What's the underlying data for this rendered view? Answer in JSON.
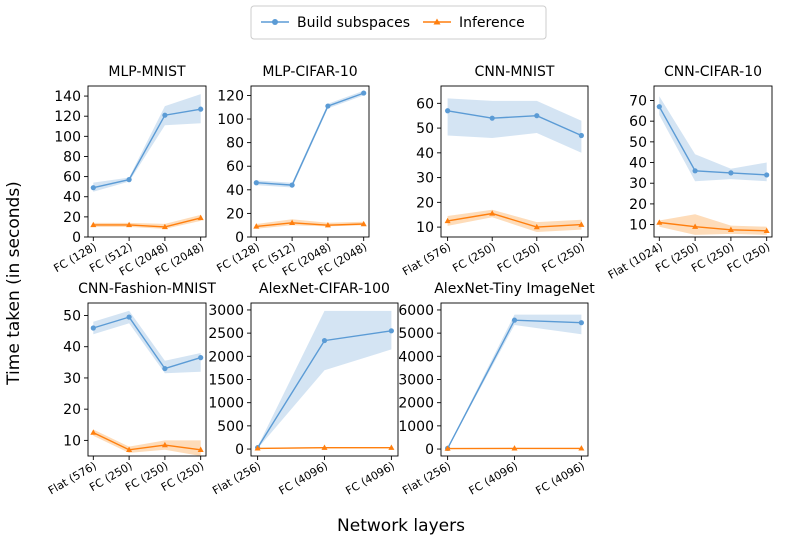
{
  "legend": {
    "entries": [
      {
        "label": "Build subspaces",
        "color": "#5b9bd5",
        "marker": "circle"
      },
      {
        "label": "Inference",
        "color": "#ff7f0e",
        "marker": "triangle"
      }
    ]
  },
  "ylabel": "Time taken (in seconds)",
  "xlabel": "Network layers",
  "colors": {
    "build": "#5b9bd5",
    "build_band": "#c6dbef",
    "inference": "#ff7f0e",
    "inference_band": "#fdd0a2"
  },
  "chart_data": [
    {
      "type": "line",
      "title": "MLP-MNIST",
      "categories": [
        "FC (128)",
        "FC (512)",
        "FC (2048)",
        "FC (2048)"
      ],
      "ylim": [
        0,
        150
      ],
      "yticks": [
        0,
        20,
        40,
        60,
        80,
        100,
        120,
        140
      ],
      "series": [
        {
          "name": "Build subspaces",
          "values": [
            49,
            57,
            121,
            127
          ],
          "lower": [
            45,
            55,
            111,
            113
          ],
          "upper": [
            54,
            59,
            130,
            142
          ]
        },
        {
          "name": "Inference",
          "values": [
            12,
            12,
            10,
            19
          ],
          "lower": [
            10,
            10,
            8,
            16
          ],
          "upper": [
            14,
            14,
            13,
            22
          ]
        }
      ]
    },
    {
      "type": "line",
      "title": "MLP-CIFAR-10",
      "categories": [
        "FC (128)",
        "FC (512)",
        "FC (2048)",
        "FC (2048)"
      ],
      "ylim": [
        0,
        128
      ],
      "yticks": [
        0,
        20,
        40,
        60,
        80,
        100,
        120
      ],
      "series": [
        {
          "name": "Build subspaces",
          "values": [
            46,
            44,
            111,
            122
          ],
          "lower": [
            44,
            42,
            109,
            120
          ],
          "upper": [
            48,
            46,
            113,
            124
          ]
        },
        {
          "name": "Inference",
          "values": [
            9,
            12,
            10,
            11
          ],
          "lower": [
            7,
            10,
            9,
            10
          ],
          "upper": [
            11,
            15,
            12,
            13
          ]
        }
      ]
    },
    {
      "type": "line",
      "title": "CNN-MNIST",
      "categories": [
        "Flat (576)",
        "FC (250)",
        "FC (250)",
        "FC (250)"
      ],
      "ylim": [
        6,
        67
      ],
      "yticks": [
        10,
        20,
        30,
        40,
        50,
        60
      ],
      "series": [
        {
          "name": "Build subspaces",
          "values": [
            57,
            54,
            55,
            47
          ],
          "lower": [
            47,
            46,
            48,
            40
          ],
          "upper": [
            62,
            61,
            61,
            53
          ]
        },
        {
          "name": "Inference",
          "values": [
            12.5,
            15.5,
            10,
            11
          ],
          "lower": [
            10.5,
            14,
            8,
            9
          ],
          "upper": [
            14.5,
            17,
            12,
            13
          ]
        }
      ]
    },
    {
      "type": "line",
      "title": "CNN-CIFAR-10",
      "categories": [
        "Flat (1024)",
        "FC (250)",
        "FC (250)",
        "FC (250)"
      ],
      "ylim": [
        4,
        77
      ],
      "yticks": [
        10,
        20,
        30,
        40,
        50,
        60,
        70
      ],
      "series": [
        {
          "name": "Build subspaces",
          "values": [
            67,
            36,
            35,
            34
          ],
          "lower": [
            63,
            31,
            32,
            31
          ],
          "upper": [
            72,
            44,
            37,
            40
          ]
        },
        {
          "name": "Inference",
          "values": [
            11,
            9,
            7.5,
            7
          ],
          "lower": [
            9,
            5,
            5.5,
            5
          ],
          "upper": [
            12,
            15,
            9.5,
            9
          ]
        }
      ]
    },
    {
      "type": "line",
      "title": "CNN-Fashion-MNIST",
      "categories": [
        "Flat (576)",
        "FC (250)",
        "FC (250)",
        "FC (250)"
      ],
      "ylim": [
        5,
        54
      ],
      "yticks": [
        10,
        20,
        30,
        40,
        50
      ],
      "series": [
        {
          "name": "Build subspaces",
          "values": [
            46,
            49.5,
            33,
            36.5
          ],
          "lower": [
            44,
            47.5,
            31.5,
            32
          ],
          "upper": [
            48,
            51.5,
            35.5,
            38
          ]
        },
        {
          "name": "Inference",
          "values": [
            12.5,
            7,
            8.5,
            7
          ],
          "lower": [
            11.5,
            6,
            7,
            5
          ],
          "upper": [
            13.5,
            8,
            10,
            10
          ]
        }
      ]
    },
    {
      "type": "line",
      "title": "AlexNet-CIFAR-100",
      "categories": [
        "Flat (256)",
        "FC (4096)",
        "FC (4096)"
      ],
      "ylim": [
        -150,
        3150
      ],
      "yticks": [
        0,
        500,
        1000,
        1500,
        2000,
        2500,
        3000
      ],
      "series": [
        {
          "name": "Build subspaces",
          "values": [
            30,
            2340,
            2550
          ],
          "lower": [
            10,
            1700,
            2150
          ],
          "upper": [
            50,
            2980,
            2980
          ]
        },
        {
          "name": "Inference",
          "values": [
            15,
            30,
            30
          ],
          "lower": [
            5,
            15,
            15
          ],
          "upper": [
            25,
            45,
            45
          ]
        }
      ]
    },
    {
      "type": "line",
      "title": "AlexNet-Tiny ImageNet",
      "categories": [
        "Flat (256)",
        "FC (4096)",
        "FC (4096)"
      ],
      "ylim": [
        -300,
        6300
      ],
      "yticks": [
        0,
        1000,
        2000,
        3000,
        4000,
        5000,
        6000
      ],
      "series": [
        {
          "name": "Build subspaces",
          "values": [
            30,
            5560,
            5450
          ],
          "lower": [
            10,
            5350,
            4950
          ],
          "upper": [
            50,
            5800,
            5800
          ]
        },
        {
          "name": "Inference",
          "values": [
            20,
            30,
            30
          ],
          "lower": [
            10,
            15,
            15
          ],
          "upper": [
            30,
            45,
            45
          ]
        }
      ]
    }
  ]
}
